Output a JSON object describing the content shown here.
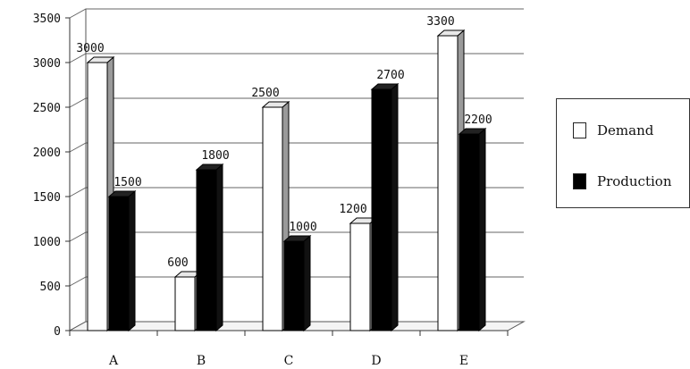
{
  "chart_data": {
    "type": "bar",
    "categories": [
      "A",
      "B",
      "C",
      "D",
      "E"
    ],
    "series": [
      {
        "name": "Demand",
        "color": "#ffffff",
        "values": [
          3000,
          600,
          2500,
          1200,
          3300
        ]
      },
      {
        "name": "Production",
        "color": "#000000",
        "values": [
          1500,
          1800,
          1000,
          2700,
          2200
        ]
      }
    ],
    "ylim": [
      0,
      3500
    ],
    "yticks": [
      "0",
      "500",
      "1000",
      "1500",
      "2000",
      "2500",
      "3000",
      "3500"
    ],
    "grid": true,
    "legend_position": "right",
    "style": "3d-column"
  }
}
